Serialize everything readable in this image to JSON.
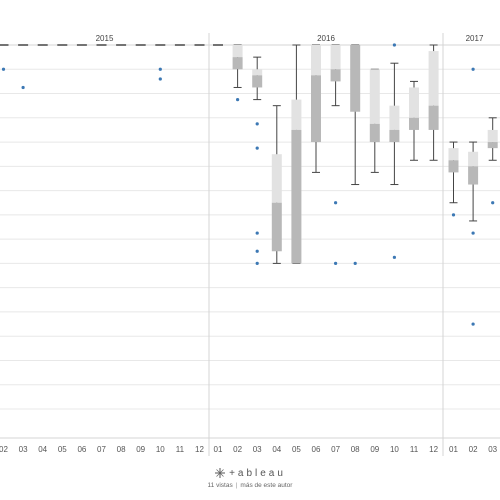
{
  "chart_data": {
    "type": "box",
    "years": [
      {
        "label": "2015",
        "months": [
          "02",
          "03",
          "04",
          "05",
          "06",
          "07",
          "08",
          "09",
          "10",
          "11",
          "12"
        ]
      },
      {
        "label": "2016",
        "months": [
          "01",
          "02",
          "03",
          "04",
          "05",
          "06",
          "07",
          "08",
          "09",
          "10",
          "11",
          "12"
        ]
      },
      {
        "label": "2017",
        "months": [
          "01",
          "02",
          "03"
        ]
      }
    ],
    "ylim": [
      0,
      30
    ],
    "grid": true,
    "boxes": [
      {
        "key": "2015-02",
        "q1": 30,
        "median": 30,
        "q3": 30,
        "wlow": 30,
        "whigh": 30,
        "outliers": [
          28
        ]
      },
      {
        "key": "2015-03",
        "q1": 30,
        "median": 30,
        "q3": 30,
        "wlow": 30,
        "whigh": 30,
        "outliers": [
          26.5
        ]
      },
      {
        "key": "2015-04",
        "q1": 30,
        "median": 30,
        "q3": 30,
        "wlow": 30,
        "whigh": 30,
        "outliers": []
      },
      {
        "key": "2015-05",
        "q1": 30,
        "median": 30,
        "q3": 30,
        "wlow": 30,
        "whigh": 30,
        "outliers": []
      },
      {
        "key": "2015-06",
        "q1": 30,
        "median": 30,
        "q3": 30,
        "wlow": 30,
        "whigh": 30,
        "outliers": []
      },
      {
        "key": "2015-07",
        "q1": 30,
        "median": 30,
        "q3": 30,
        "wlow": 30,
        "whigh": 30,
        "outliers": []
      },
      {
        "key": "2015-08",
        "q1": 30,
        "median": 30,
        "q3": 30,
        "wlow": 30,
        "whigh": 30,
        "outliers": []
      },
      {
        "key": "2015-09",
        "q1": 30,
        "median": 30,
        "q3": 30,
        "wlow": 30,
        "whigh": 30,
        "outliers": []
      },
      {
        "key": "2015-10",
        "q1": 30,
        "median": 30,
        "q3": 30,
        "wlow": 30,
        "whigh": 30,
        "outliers": [
          28,
          27.2
        ]
      },
      {
        "key": "2015-11",
        "q1": 30,
        "median": 30,
        "q3": 30,
        "wlow": 30,
        "whigh": 30,
        "outliers": []
      },
      {
        "key": "2015-12",
        "q1": 30,
        "median": 30,
        "q3": 30,
        "wlow": 30,
        "whigh": 30,
        "outliers": []
      },
      {
        "key": "2016-01",
        "q1": 30,
        "median": 30,
        "q3": 30,
        "wlow": 30,
        "whigh": 30,
        "outliers": []
      },
      {
        "key": "2016-02",
        "q1": 28,
        "median": 29,
        "q3": 30,
        "wlow": 26.5,
        "whigh": 30,
        "outliers": [
          25.5
        ]
      },
      {
        "key": "2016-03",
        "q1": 26.5,
        "median": 27.5,
        "q3": 28,
        "wlow": 25.5,
        "whigh": 29,
        "outliers": [
          23.5,
          21.5,
          14.5,
          13,
          12
        ]
      },
      {
        "key": "2016-04",
        "q1": 13,
        "median": 17,
        "q3": 21,
        "wlow": 12,
        "whigh": 25,
        "outliers": []
      },
      {
        "key": "2016-05",
        "q1": 12,
        "median": 23,
        "q3": 25.5,
        "wlow": 12,
        "whigh": 30,
        "outliers": []
      },
      {
        "key": "2016-06",
        "q1": 22,
        "median": 27.5,
        "q3": 30,
        "wlow": 19.5,
        "whigh": 30,
        "outliers": []
      },
      {
        "key": "2016-07",
        "q1": 27,
        "median": 28,
        "q3": 30,
        "wlow": 25,
        "whigh": 30,
        "outliers": [
          17,
          12
        ]
      },
      {
        "key": "2016-08",
        "q1": 24.5,
        "median": 30,
        "q3": 30,
        "wlow": 18.5,
        "whigh": 30,
        "outliers": [
          12
        ]
      },
      {
        "key": "2016-09",
        "q1": 22,
        "median": 23.5,
        "q3": 28,
        "wlow": 19.5,
        "whigh": 28,
        "outliers": []
      },
      {
        "key": "2016-10",
        "q1": 22,
        "median": 23,
        "q3": 25,
        "wlow": 18.5,
        "whigh": 28.5,
        "outliers": [
          30,
          12.5
        ]
      },
      {
        "key": "2016-11",
        "q1": 23,
        "median": 24,
        "q3": 26.5,
        "wlow": 20.5,
        "whigh": 27,
        "outliers": []
      },
      {
        "key": "2016-12",
        "q1": 23,
        "median": 25,
        "q3": 29.5,
        "wlow": 20.5,
        "whigh": 30,
        "outliers": []
      },
      {
        "key": "2017-01",
        "q1": 19.5,
        "median": 20.5,
        "q3": 21.5,
        "wlow": 17,
        "whigh": 22,
        "outliers": [
          16
        ]
      },
      {
        "key": "2017-02",
        "q1": 18.5,
        "median": 20,
        "q3": 21.2,
        "wlow": 15.5,
        "whigh": 22,
        "outliers": [
          28,
          14.5,
          7
        ]
      },
      {
        "key": "2017-03",
        "q1": 21.5,
        "median": 22,
        "q3": 23,
        "wlow": 20.5,
        "whigh": 24,
        "outliers": [
          17
        ]
      }
    ],
    "colors": {
      "box_lower": "#b8b8b8",
      "box_upper": "#e2e2e2",
      "whisker": "#444444",
      "outlier": "#3c78b4",
      "grid": "#e8e8e8",
      "divider": "#d4d4d4"
    }
  },
  "footer": {
    "brand": "+ableau",
    "views": "11 vistas",
    "separator": "|",
    "author_link": "más de este autor"
  }
}
